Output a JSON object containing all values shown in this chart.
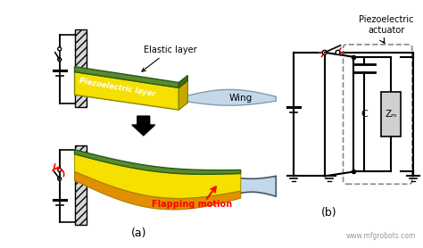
{
  "bg_color": "#ffffff",
  "fig_width": 4.74,
  "fig_height": 2.78,
  "dpi": 100,
  "watermark": "www.mfgrobots.com",
  "label_a": "(a)",
  "label_b": "(b)",
  "elastic_layer_label": "Elastic layer",
  "piezo_layer_label": "Piezoelectric layer",
  "wing_label": "Wing",
  "flapping_label": "Flapping motion",
  "piezo_actuator_label": "Piezoelectric\nactuator",
  "C_label": "C",
  "Zm_label": "Zₘ"
}
